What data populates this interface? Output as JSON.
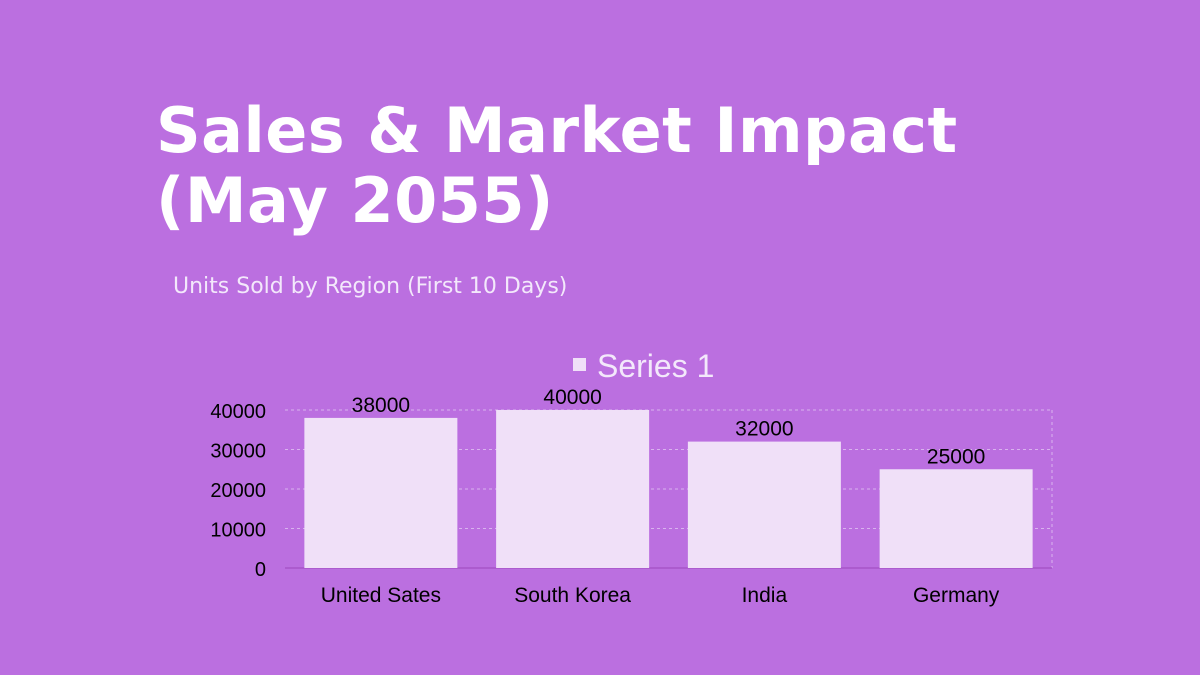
{
  "slide": {
    "title": "Sales & Market Impact (May 2055)",
    "subtitle": "Units Sold by Region (First 10 Days)"
  },
  "colors": {
    "background": "#bb6fe0",
    "bar": "#f0e0f8",
    "text": "#000000",
    "legend_text": "#f3e8fb"
  },
  "chart_data": {
    "type": "bar",
    "title": "",
    "categories": [
      "United Sates",
      "South Korea",
      "India",
      "Germany"
    ],
    "series": [
      {
        "name": "Series 1",
        "values": [
          38000,
          40000,
          32000,
          25000
        ]
      }
    ],
    "ylim": [
      0,
      40000
    ],
    "yticks": [
      0,
      10000,
      20000,
      30000,
      40000
    ],
    "xlabel": "",
    "ylabel": "",
    "grid": true,
    "legend": "top",
    "data_labels": true
  }
}
